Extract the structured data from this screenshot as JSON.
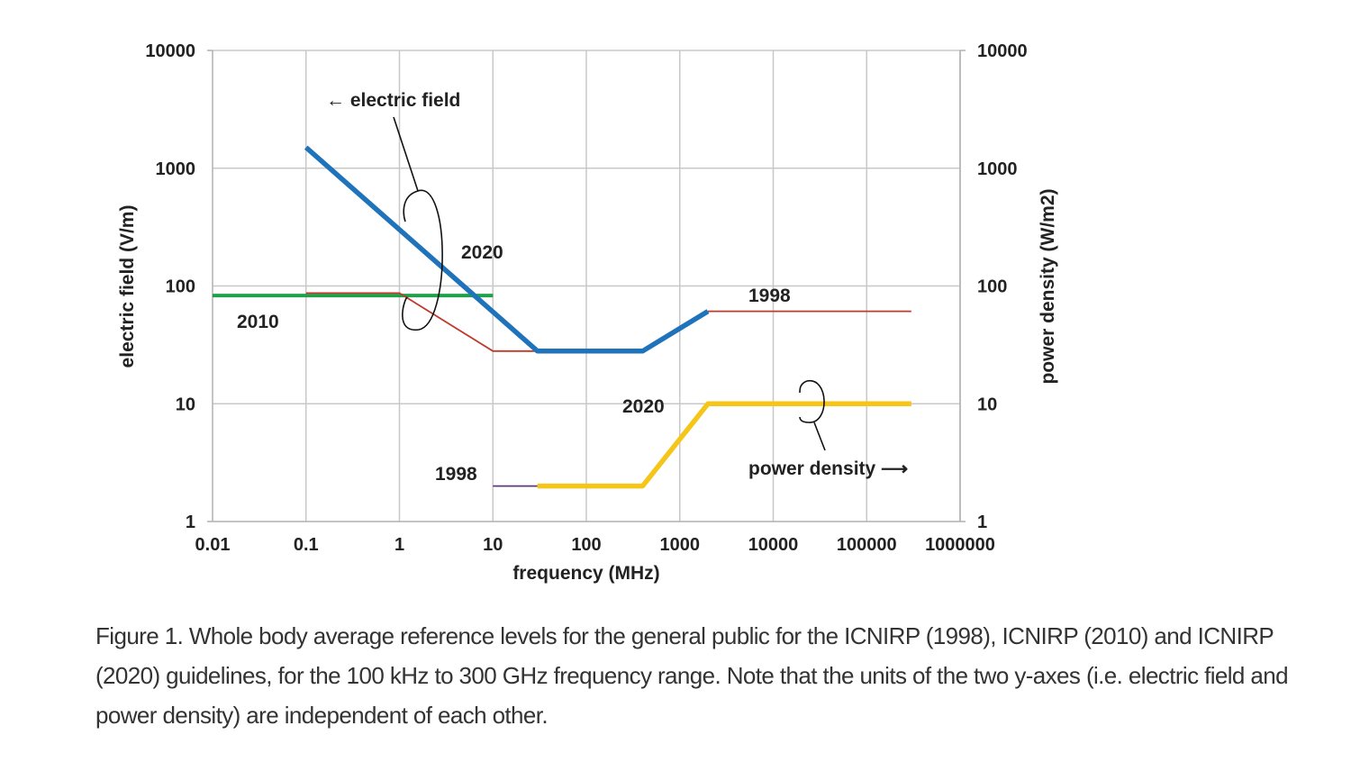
{
  "chart_data": {
    "type": "line",
    "x_scale": "log",
    "y_scale": "log",
    "xlim": [
      0.01,
      1000000
    ],
    "ylim_left": [
      1,
      10000
    ],
    "ylim_right": [
      1,
      10000
    ],
    "grid": true,
    "xlabel": "frequency (MHz)",
    "ylabel_left": "electric field (V/m)",
    "ylabel_right": "power density (W/m2)",
    "x_ticks": [
      "0.01",
      "0.1",
      "1",
      "10",
      "100",
      "1000",
      "10000",
      "100000",
      "1000000"
    ],
    "y_ticks_left": [
      "1",
      "10",
      "100",
      "1000",
      "10000"
    ],
    "y_ticks_right": [
      "1",
      "10",
      "100",
      "1000",
      "10000"
    ],
    "series": [
      {
        "key": "ef2010",
        "axis": "left",
        "color": "#1fa04a",
        "x": [
          0.01,
          10
        ],
        "y": [
          83,
          83
        ]
      },
      {
        "key": "ef1998",
        "axis": "left",
        "color": "#c0392b",
        "x": [
          0.1,
          1,
          10,
          30
        ],
        "y": [
          87,
          87,
          28,
          28
        ]
      },
      {
        "key": "ef2020",
        "axis": "left",
        "color": "#1f73bb",
        "x": [
          0.1,
          30,
          400,
          2000
        ],
        "y": [
          1500,
          28,
          28,
          61
        ]
      },
      {
        "key": "pd1998",
        "axis": "right",
        "color": "#c0392b",
        "x": [
          2000,
          300000
        ],
        "y": [
          61,
          61
        ]
      },
      {
        "key": "pd1998low",
        "axis": "right",
        "color": "#5b3a7a",
        "x": [
          10,
          30
        ],
        "y": [
          2,
          2
        ]
      },
      {
        "key": "pd2020",
        "axis": "right",
        "color": "#f5c518",
        "x": [
          30,
          400,
          2000,
          300000
        ],
        "y": [
          2,
          2,
          10,
          10
        ]
      }
    ],
    "annotations": {
      "electric_field": "← electric field",
      "power_density": "power density ⟶",
      "label_2020_upper": "2020",
      "label_2010": "2010",
      "label_1998_upper": "1998",
      "label_2020_lower": "2020",
      "label_1998_lower": "1998"
    }
  },
  "caption": "Figure 1. Whole body average reference levels for the general public for the ICNIRP (1998), ICNIRP (2010) and ICNIRP (2020) guidelines, for the 100 kHz to 300 GHz frequency range. Note that the units of the two y-axes (i.e. electric field and power density) are independent of each other."
}
